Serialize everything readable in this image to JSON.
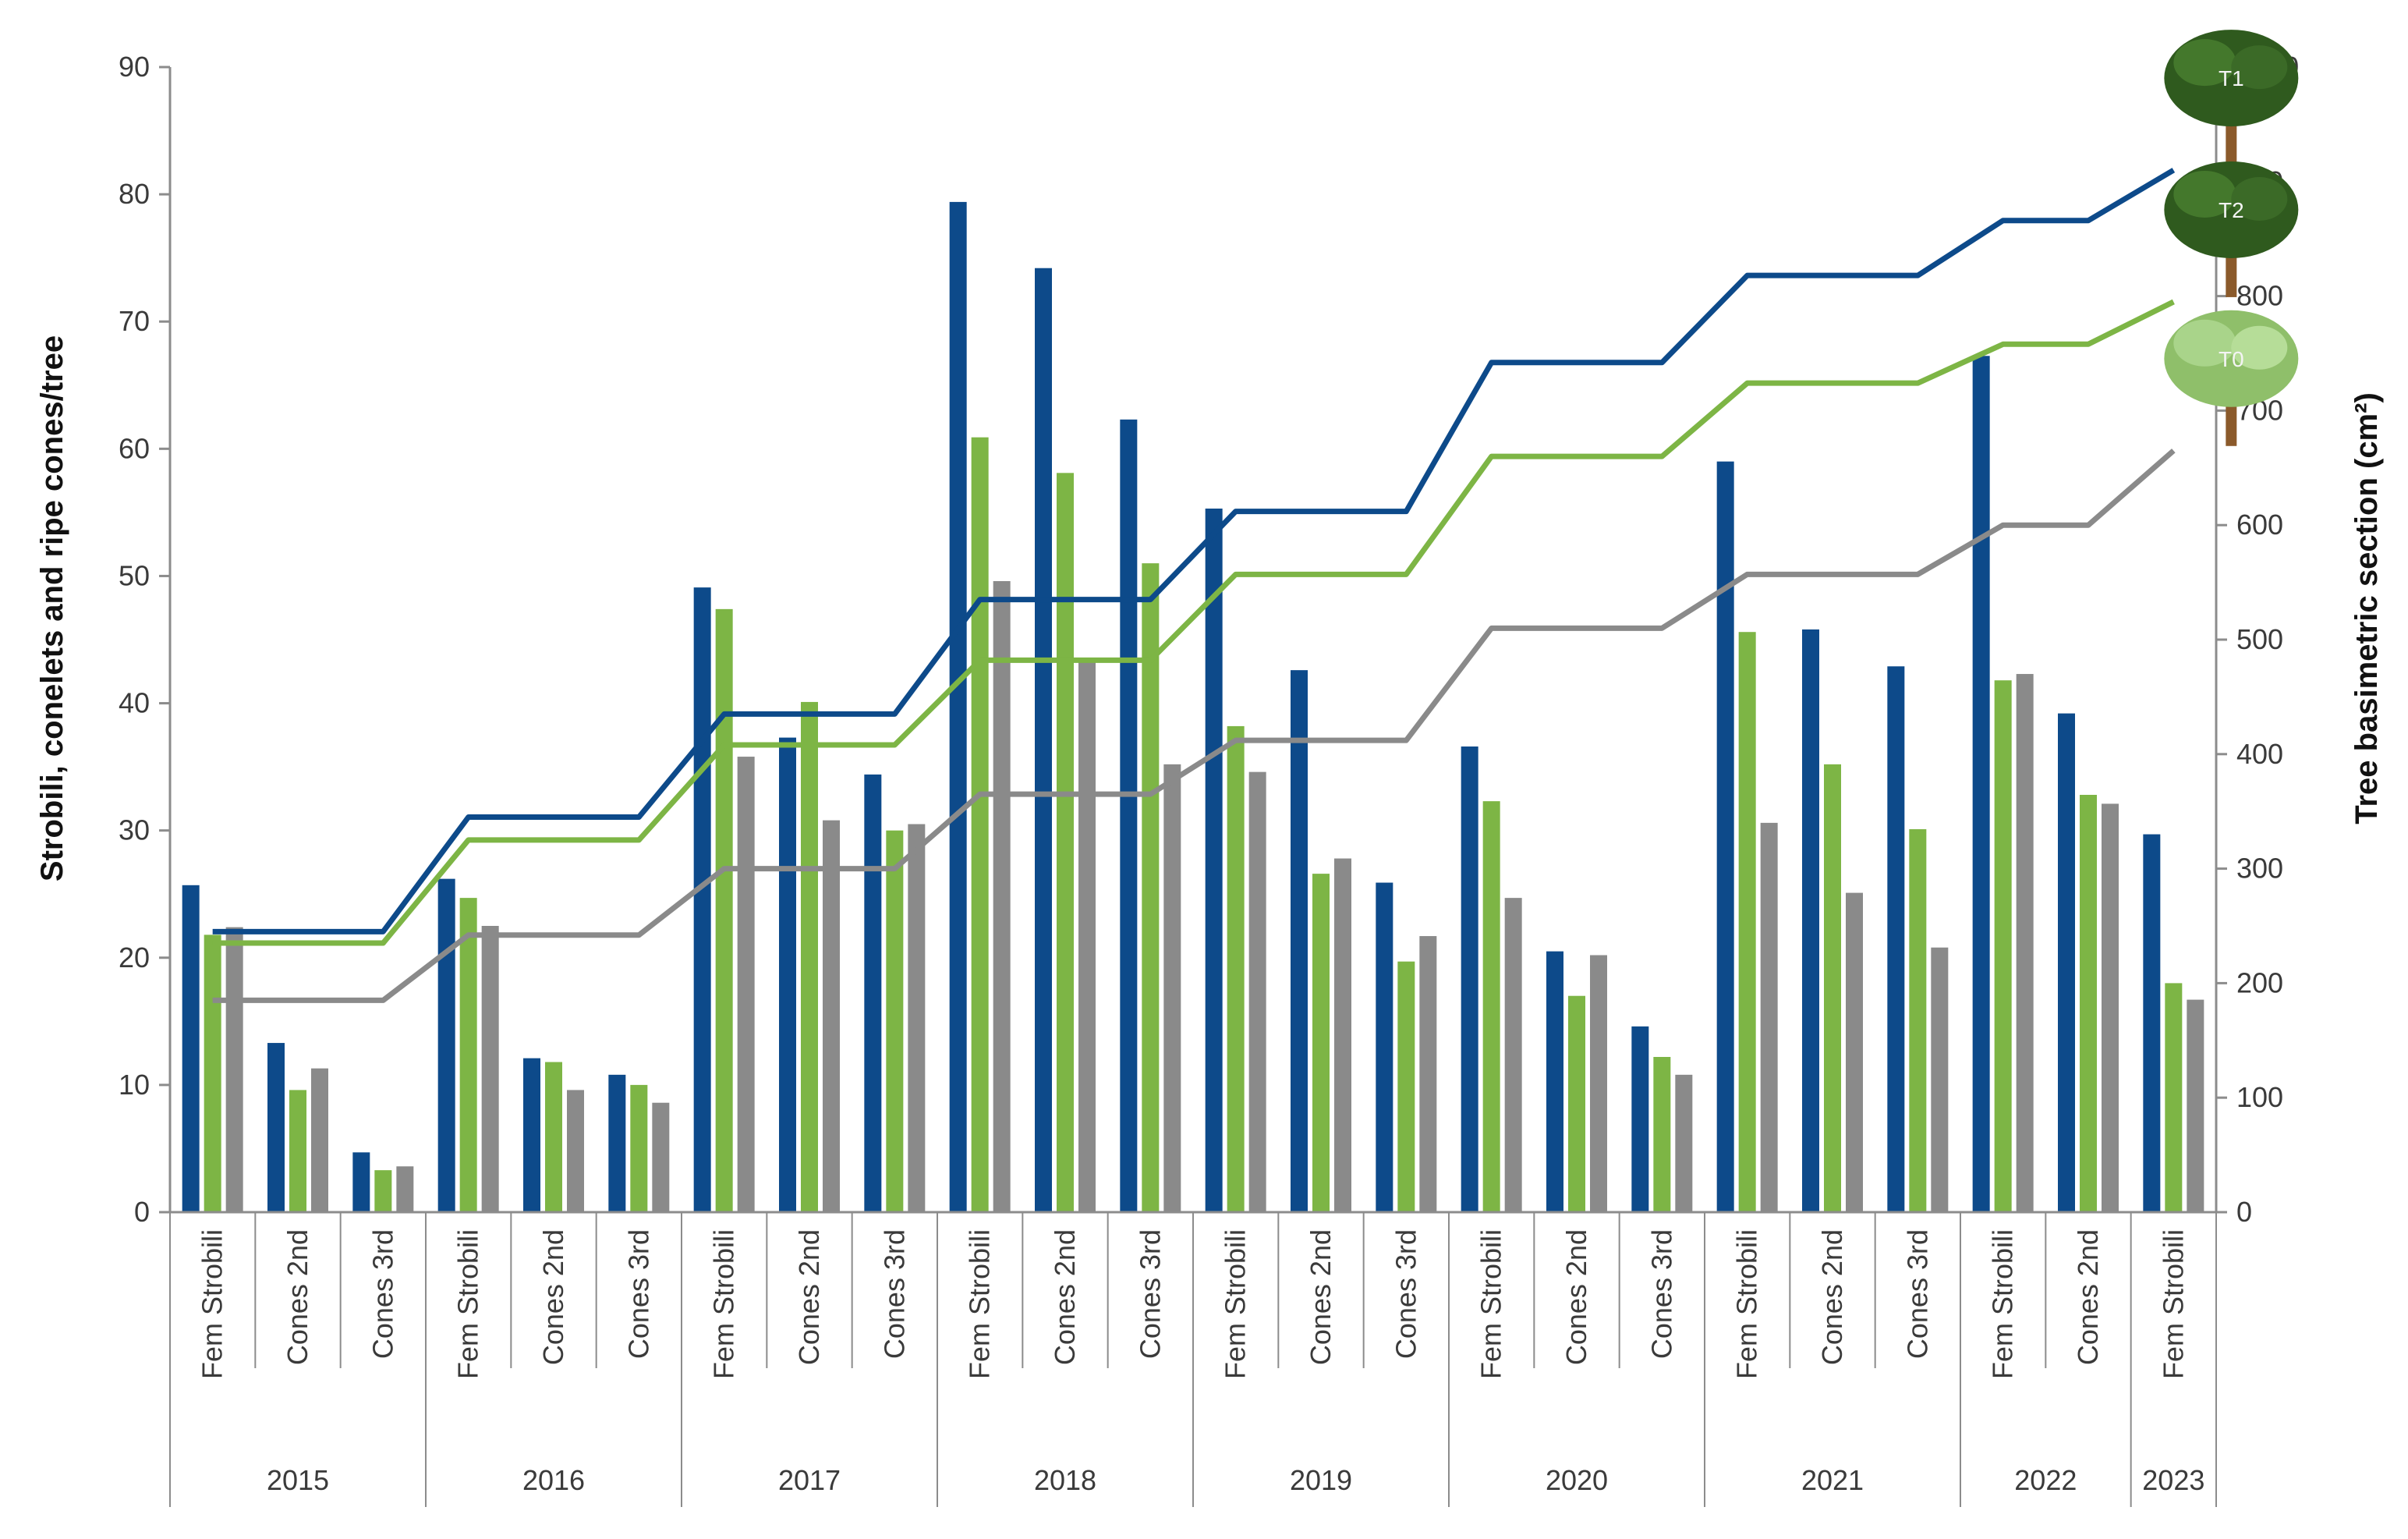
{
  "chart_data": {
    "type": "bar",
    "groups": [
      {
        "year": "2015",
        "categories": [
          "Fem Strobili",
          "Cones 2nd",
          "Cones 3rd"
        ]
      },
      {
        "year": "2016",
        "categories": [
          "Fem Strobili",
          "Cones 2nd",
          "Cones 3rd"
        ]
      },
      {
        "year": "2017",
        "categories": [
          "Fem Strobili",
          "Cones 2nd",
          "Cones 3rd"
        ]
      },
      {
        "year": "2018",
        "categories": [
          "Fem Strobili",
          "Cones 2nd",
          "Cones 3rd"
        ]
      },
      {
        "year": "2019",
        "categories": [
          "Fem Strobili",
          "Cones 2nd",
          "Cones 3rd"
        ]
      },
      {
        "year": "2020",
        "categories": [
          "Fem Strobili",
          "Cones 2nd",
          "Cones 3rd"
        ]
      },
      {
        "year": "2021",
        "categories": [
          "Fem Strobili",
          "Cones 2nd",
          "Cones 3rd"
        ]
      },
      {
        "year": "2022",
        "categories": [
          "Fem Strobili",
          "Cones 2nd"
        ]
      },
      {
        "year": "2023",
        "categories": [
          "Fem Strobili"
        ]
      }
    ],
    "bar_series": [
      {
        "name": "T1",
        "color": "#0d4a8a",
        "values": [
          25.7,
          13.3,
          4.7,
          26.2,
          12.1,
          10.8,
          49.1,
          37.3,
          34.4,
          79.4,
          74.2,
          62.3,
          55.3,
          42.6,
          25.9,
          36.6,
          20.5,
          14.6,
          59.0,
          45.8,
          42.9,
          67.3,
          39.2,
          29.7
        ]
      },
      {
        "name": "T2",
        "color": "#7db545",
        "values": [
          21.8,
          9.6,
          3.3,
          24.7,
          11.8,
          10.0,
          47.4,
          40.1,
          30.0,
          60.9,
          58.1,
          51.0,
          38.2,
          26.6,
          19.7,
          32.3,
          17.0,
          12.2,
          45.6,
          35.2,
          30.1,
          41.8,
          32.8,
          18.0
        ]
      },
      {
        "name": "T0",
        "color": "#8a8a8a",
        "values": [
          22.4,
          11.3,
          3.6,
          22.5,
          9.6,
          8.6,
          35.8,
          30.8,
          30.5,
          49.6,
          43.2,
          35.2,
          34.6,
          27.8,
          21.7,
          24.7,
          20.2,
          10.8,
          30.6,
          25.1,
          20.8,
          42.3,
          32.1,
          16.7
        ]
      }
    ],
    "line_series": [
      {
        "name": "T1",
        "color": "#0d4a8a",
        "values": [
          245,
          245,
          245,
          345,
          345,
          345,
          435,
          435,
          435,
          535,
          535,
          535,
          612,
          612,
          612,
          742,
          742,
          742,
          818,
          818,
          818,
          866,
          866,
          910
        ]
      },
      {
        "name": "T2",
        "color": "#7db545",
        "values": [
          235,
          235,
          235,
          325,
          325,
          325,
          408,
          408,
          408,
          482,
          482,
          482,
          557,
          557,
          557,
          660,
          660,
          660,
          724,
          724,
          724,
          758,
          758,
          795
        ]
      },
      {
        "name": "T0",
        "color": "#8a8a8a",
        "values": [
          185,
          185,
          185,
          242,
          242,
          242,
          300,
          300,
          300,
          365,
          365,
          365,
          412,
          412,
          412,
          510,
          510,
          510,
          557,
          557,
          557,
          600,
          600,
          665
        ]
      }
    ],
    "ylabel": "Strobili, conelets and ripe cones/tree",
    "y2label": "Tree basimetric section (cm²)",
    "ylim": [
      0,
      90
    ],
    "y2lim": [
      0,
      1000
    ],
    "yticks": [
      0,
      10,
      20,
      30,
      40,
      50,
      60,
      70,
      80,
      90
    ],
    "y2ticks": [
      0,
      100,
      200,
      300,
      400,
      500,
      600,
      700,
      800,
      900,
      1000
    ],
    "legend": [
      "T1",
      "T2",
      "T0"
    ],
    "legend_placement": "right, as tree icons at the line ends",
    "grid": false
  }
}
